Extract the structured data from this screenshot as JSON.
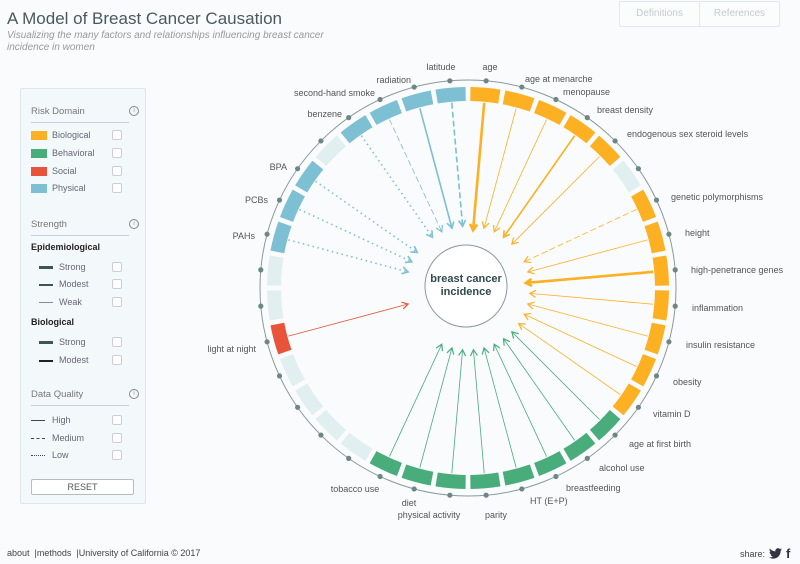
{
  "header": {
    "title": "A Model of Breast Cancer Causation",
    "subtitle": "Visualizing the many factors and relationships influencing breast cancer incidence in women",
    "buttons": [
      "Definitions",
      "References"
    ]
  },
  "sidebar": {
    "risk_domain": {
      "title": "Risk Domain",
      "items": [
        {
          "label": "Biological",
          "color": "#fdb022"
        },
        {
          "label": "Behavioral",
          "color": "#48ad7b"
        },
        {
          "label": "Social",
          "color": "#e8533a"
        },
        {
          "label": "Physical",
          "color": "#7dbfd3"
        }
      ]
    },
    "strength": {
      "title": "Strength",
      "epi_title": "Epidemiological",
      "epi": [
        "Strong",
        "Modest",
        "Weak"
      ],
      "bio_title": "Biological",
      "bio": [
        "Strong",
        "Modest"
      ]
    },
    "quality": {
      "title": "Data Quality",
      "items": [
        "High",
        "Medium",
        "Low"
      ]
    },
    "reset": "RESET"
  },
  "center_label": "breast cancer incidence",
  "colors": {
    "biological": "#fdb022",
    "behavioral": "#48ad7b",
    "social": "#e8533a",
    "physical": "#7dbfd3",
    "empty": "#e1eff1",
    "ring": "#8a9a9a",
    "dot": "#6e8686"
  },
  "factors": [
    {
      "i": 0,
      "label": "age",
      "domain": "biological",
      "strength": "strong",
      "quality": "high"
    },
    {
      "i": 1,
      "label": "age at menarche",
      "domain": "biological",
      "strength": "weak",
      "quality": "high"
    },
    {
      "i": 2,
      "label": "menopause",
      "domain": "biological",
      "strength": "weak",
      "quality": "high"
    },
    {
      "i": 3,
      "label": "breast density",
      "domain": "biological",
      "strength": "modest",
      "quality": "high"
    },
    {
      "i": 4,
      "label": "endogenous sex steroid levels",
      "domain": "biological",
      "strength": "weak",
      "quality": "high"
    },
    {
      "i": 6,
      "label": "genetic polymorphisms",
      "domain": "biological",
      "strength": "weak",
      "quality": "medium"
    },
    {
      "i": 7,
      "label": "height",
      "domain": "biological",
      "strength": "weak",
      "quality": "high"
    },
    {
      "i": 8,
      "label": "high-penetrance genes",
      "domain": "biological",
      "strength": "strong",
      "quality": "high"
    },
    {
      "i": 9,
      "label": "inflammation",
      "domain": "biological",
      "strength": "weak",
      "quality": "high"
    },
    {
      "i": 10,
      "label": "insulin resistance",
      "domain": "biological",
      "strength": "weak",
      "quality": "high"
    },
    {
      "i": 11,
      "label": "obesity",
      "domain": "biological",
      "strength": "weak",
      "quality": "high"
    },
    {
      "i": 12,
      "label": "vitamin D",
      "domain": "biological",
      "strength": "weak",
      "quality": "high"
    },
    {
      "i": 13,
      "label": "age at first birth",
      "domain": "behavioral",
      "strength": "weak",
      "quality": "high"
    },
    {
      "i": 14,
      "label": "alcohol use",
      "domain": "behavioral",
      "strength": "weak",
      "quality": "high"
    },
    {
      "i": 15,
      "label": "breastfeeding",
      "domain": "behavioral",
      "strength": "weak",
      "quality": "high"
    },
    {
      "i": 16,
      "label": "HT (E+P)",
      "domain": "behavioral",
      "strength": "weak",
      "quality": "high"
    },
    {
      "i": 17,
      "label": "parity",
      "domain": "behavioral",
      "strength": "weak",
      "quality": "high"
    },
    {
      "i": 18,
      "label": "physical activity",
      "domain": "behavioral",
      "strength": "weak",
      "quality": "high"
    },
    {
      "i": 19,
      "label": "diet",
      "domain": "behavioral",
      "strength": "weak",
      "quality": "high"
    },
    {
      "i": 20,
      "label": "tobacco use",
      "domain": "behavioral",
      "strength": "weak",
      "quality": "high"
    },
    {
      "i": 25,
      "label": "light at night",
      "domain": "social",
      "strength": "weak",
      "quality": "high"
    },
    {
      "i": 28,
      "label": "PAHs",
      "domain": "physical",
      "strength": "modest",
      "quality": "low"
    },
    {
      "i": 29,
      "label": "PCBs",
      "domain": "physical",
      "strength": "modest",
      "quality": "low"
    },
    {
      "i": 30,
      "label": "BPA",
      "domain": "physical",
      "strength": "modest",
      "quality": "low"
    },
    {
      "i": 32,
      "label": "benzene",
      "domain": "physical",
      "strength": "modest",
      "quality": "low"
    },
    {
      "i": 33,
      "label": "second-hand smoke",
      "domain": "physical",
      "strength": "weak",
      "quality": "medium"
    },
    {
      "i": 34,
      "label": "radiation",
      "domain": "physical",
      "strength": "modest",
      "quality": "high"
    },
    {
      "i": 35,
      "label": "latitude",
      "domain": "physical",
      "strength": "modest",
      "quality": "medium"
    }
  ],
  "footer": {
    "about": "about",
    "methods": "methods",
    "copyright": "University of California © 2017",
    "share": "share:"
  }
}
